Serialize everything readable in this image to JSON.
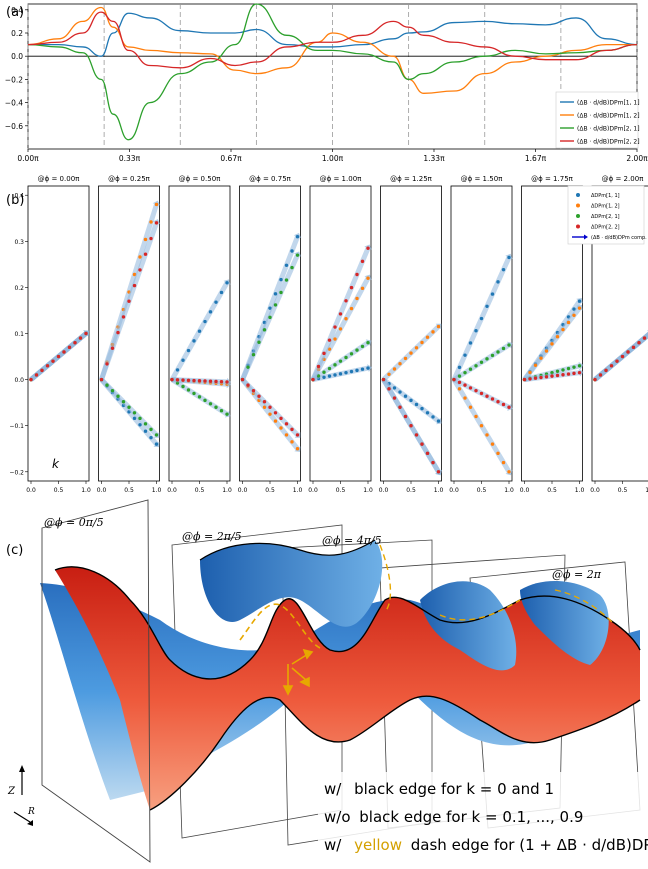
{
  "panels": {
    "a": {
      "label": "(a)"
    },
    "b": {
      "label": "(b)",
      "k_label": "k"
    },
    "c": {
      "label": "(c)"
    }
  },
  "colors": {
    "series11": "#1f77b4",
    "series12": "#ff7f0e",
    "series21": "#2ca02c",
    "series22": "#d62728",
    "arrow": "#0000cc",
    "surface_red": "#e8402a",
    "surface_blue": "#3d8ad0",
    "dash_yellow": "#e7a800"
  },
  "chart_data": [
    {
      "type": "line",
      "panel": "a",
      "xlim": [
        0,
        2
      ],
      "ylim": [
        -0.8,
        0.45
      ],
      "xticks": [
        {
          "v": 0,
          "label": "0.00π"
        },
        {
          "v": 0.3333,
          "label": "0.33π"
        },
        {
          "v": 0.6667,
          "label": "0.67π"
        },
        {
          "v": 1.0,
          "label": "1.00π"
        },
        {
          "v": 1.3333,
          "label": "1.33π"
        },
        {
          "v": 1.6667,
          "label": "1.67π"
        },
        {
          "v": 2.0,
          "label": "2.00π"
        }
      ],
      "yticks": [
        {
          "v": 0.4,
          "label": "0.4"
        },
        {
          "v": 0.2,
          "label": "0.2"
        },
        {
          "v": 0.0,
          "label": "0.0"
        },
        {
          "v": -0.2,
          "label": "−0.2"
        },
        {
          "v": -0.4,
          "label": "−0.4"
        },
        {
          "v": -0.6,
          "label": "−0.6"
        }
      ],
      "vlines": [
        0,
        0.25,
        0.5,
        0.75,
        1.0,
        1.25,
        1.5,
        1.75,
        2.0
      ],
      "legend_position": "lower-right",
      "series": [
        {
          "name": "(ΔB · d/dB)DPm[1, 1]",
          "x": [
            0,
            0.1,
            0.18,
            0.24,
            0.28,
            0.33,
            0.4,
            0.5,
            0.6,
            0.68,
            0.75,
            0.85,
            0.95,
            1.0,
            1.1,
            1.2,
            1.25,
            1.3,
            1.4,
            1.5,
            1.6,
            1.7,
            1.8,
            1.9,
            2.0
          ],
          "y": [
            0.1,
            0.1,
            0.08,
            0.0,
            0.2,
            0.37,
            0.33,
            0.22,
            0.2,
            0.2,
            0.23,
            0.1,
            0.08,
            0.08,
            0.1,
            0.15,
            0.2,
            0.21,
            0.29,
            0.3,
            0.28,
            0.27,
            0.33,
            0.15,
            0.1
          ]
        },
        {
          "name": "(ΔB · d/dB)DPm[1, 2]",
          "x": [
            0,
            0.1,
            0.18,
            0.24,
            0.28,
            0.33,
            0.4,
            0.5,
            0.6,
            0.68,
            0.75,
            0.85,
            0.95,
            1.0,
            1.1,
            1.2,
            1.25,
            1.3,
            1.4,
            1.5,
            1.6,
            1.7,
            1.8,
            1.9,
            2.0
          ],
          "y": [
            0.1,
            0.15,
            0.3,
            0.42,
            0.25,
            0.08,
            0.05,
            0.03,
            0.02,
            -0.12,
            -0.15,
            -0.1,
            0.12,
            0.2,
            0.12,
            0.0,
            -0.2,
            -0.32,
            -0.3,
            -0.15,
            -0.05,
            0.0,
            0.05,
            0.1,
            0.1
          ]
        },
        {
          "name": "(ΔB · d/dB)DPm[2, 1]",
          "x": [
            0,
            0.1,
            0.18,
            0.24,
            0.28,
            0.33,
            0.4,
            0.5,
            0.6,
            0.68,
            0.75,
            0.85,
            0.95,
            1.0,
            1.1,
            1.2,
            1.25,
            1.3,
            1.4,
            1.5,
            1.6,
            1.7,
            1.8,
            1.9,
            2.0
          ],
          "y": [
            0.1,
            0.08,
            0.03,
            -0.2,
            -0.5,
            -0.72,
            -0.4,
            -0.15,
            -0.05,
            0.1,
            0.45,
            0.18,
            0.05,
            0.05,
            0.02,
            -0.05,
            -0.2,
            -0.15,
            -0.05,
            0.0,
            0.05,
            0.02,
            0.03,
            0.05,
            0.1
          ]
        },
        {
          "name": "(ΔB · d/dB)DPm[2, 2]",
          "x": [
            0,
            0.1,
            0.18,
            0.24,
            0.28,
            0.33,
            0.4,
            0.5,
            0.6,
            0.68,
            0.75,
            0.85,
            0.95,
            1.0,
            1.1,
            1.2,
            1.25,
            1.3,
            1.4,
            1.5,
            1.6,
            1.7,
            1.8,
            1.9,
            2.0
          ],
          "y": [
            0.1,
            0.12,
            0.2,
            0.38,
            0.3,
            0.05,
            -0.08,
            -0.1,
            -0.02,
            -0.08,
            -0.05,
            0.08,
            0.12,
            0.12,
            0.18,
            0.3,
            0.25,
            0.18,
            0.12,
            0.08,
            0.0,
            -0.03,
            -0.03,
            0.05,
            0.1
          ]
        }
      ]
    },
    {
      "type": "scatter",
      "panel": "b",
      "xlim": [
        0,
        1
      ],
      "ylim": [
        -0.22,
        0.42
      ],
      "xticks": [
        {
          "v": 0,
          "label": "0.0"
        },
        {
          "v": 0.5,
          "label": "0.5"
        },
        {
          "v": 1.0,
          "label": "1.0"
        }
      ],
      "yticks": [
        {
          "v": 0.4,
          "label": "0.4"
        },
        {
          "v": 0.3,
          "label": "0.3"
        },
        {
          "v": 0.2,
          "label": "0.2"
        },
        {
          "v": 0.1,
          "label": "0.1"
        },
        {
          "v": 0.0,
          "label": "0.0"
        },
        {
          "v": -0.1,
          "label": "−0.1"
        },
        {
          "v": -0.2,
          "label": "−0.2"
        }
      ],
      "legend": [
        {
          "key": "series11",
          "label": "ΔDPm[1, 1]"
        },
        {
          "key": "series12",
          "label": "ΔDPm[1, 2]"
        },
        {
          "key": "series21",
          "label": "ΔDPm[2, 1]"
        },
        {
          "key": "series22",
          "label": "ΔDPm[2, 2]"
        },
        {
          "key": "arrow",
          "label": "(ΔB · d/dB)DPm comp."
        }
      ],
      "subplots": [
        {
          "title": "@ϕ = 0.00π",
          "end": {
            "series11": 0.1,
            "series12": 0.1,
            "series21": 0.1,
            "series22": 0.1
          }
        },
        {
          "title": "@ϕ = 0.25π",
          "end": {
            "series11": -0.14,
            "series12": 0.38,
            "series21": -0.12,
            "series22": 0.34
          }
        },
        {
          "title": "@ϕ = 0.50π",
          "end": {
            "series11": 0.21,
            "series12": -0.01,
            "series21": -0.075,
            "series22": -0.005
          }
        },
        {
          "title": "@ϕ = 0.75π",
          "end": {
            "series11": 0.31,
            "series12": -0.15,
            "series21": 0.27,
            "series22": -0.12
          }
        },
        {
          "title": "@ϕ = 1.00π",
          "end": {
            "series11": 0.025,
            "series12": 0.22,
            "series21": 0.08,
            "series22": 0.285
          }
        },
        {
          "title": "@ϕ = 1.25π",
          "end": {
            "series11": -0.09,
            "series12": 0.115,
            "series21": -0.2,
            "series22": -0.2
          }
        },
        {
          "title": "@ϕ = 1.50π",
          "end": {
            "series11": 0.265,
            "series12": -0.2,
            "series21": 0.075,
            "series22": -0.06
          }
        },
        {
          "title": "@ϕ = 1.75π",
          "end": {
            "series11": 0.17,
            "series12": 0.155,
            "series21": 0.03,
            "series22": 0.015
          }
        },
        {
          "title": "@ϕ = 2.00π",
          "end": {
            "series11": 0.1,
            "series12": 0.1,
            "series21": 0.1,
            "series22": 0.1
          }
        }
      ]
    }
  ],
  "panel_c": {
    "plane_labels": [
      "@ϕ = 0π/5",
      "@ϕ = 2π/5",
      "@ϕ = 4π/5",
      "@ϕ = 2π"
    ],
    "axis_z": "Z",
    "axis_r": "R",
    "caption": [
      {
        "prefix": "w/",
        "text": "black edge for k = 0 and 1",
        "highlight": ""
      },
      {
        "prefix": "w/o",
        "text": "black edge for k = 0.1, ..., 0.9",
        "highlight": ""
      },
      {
        "prefix": "w/",
        "highlight": "yellow",
        "text": "dash edge for (1 + ΔB · d/dB)DPm"
      }
    ]
  }
}
